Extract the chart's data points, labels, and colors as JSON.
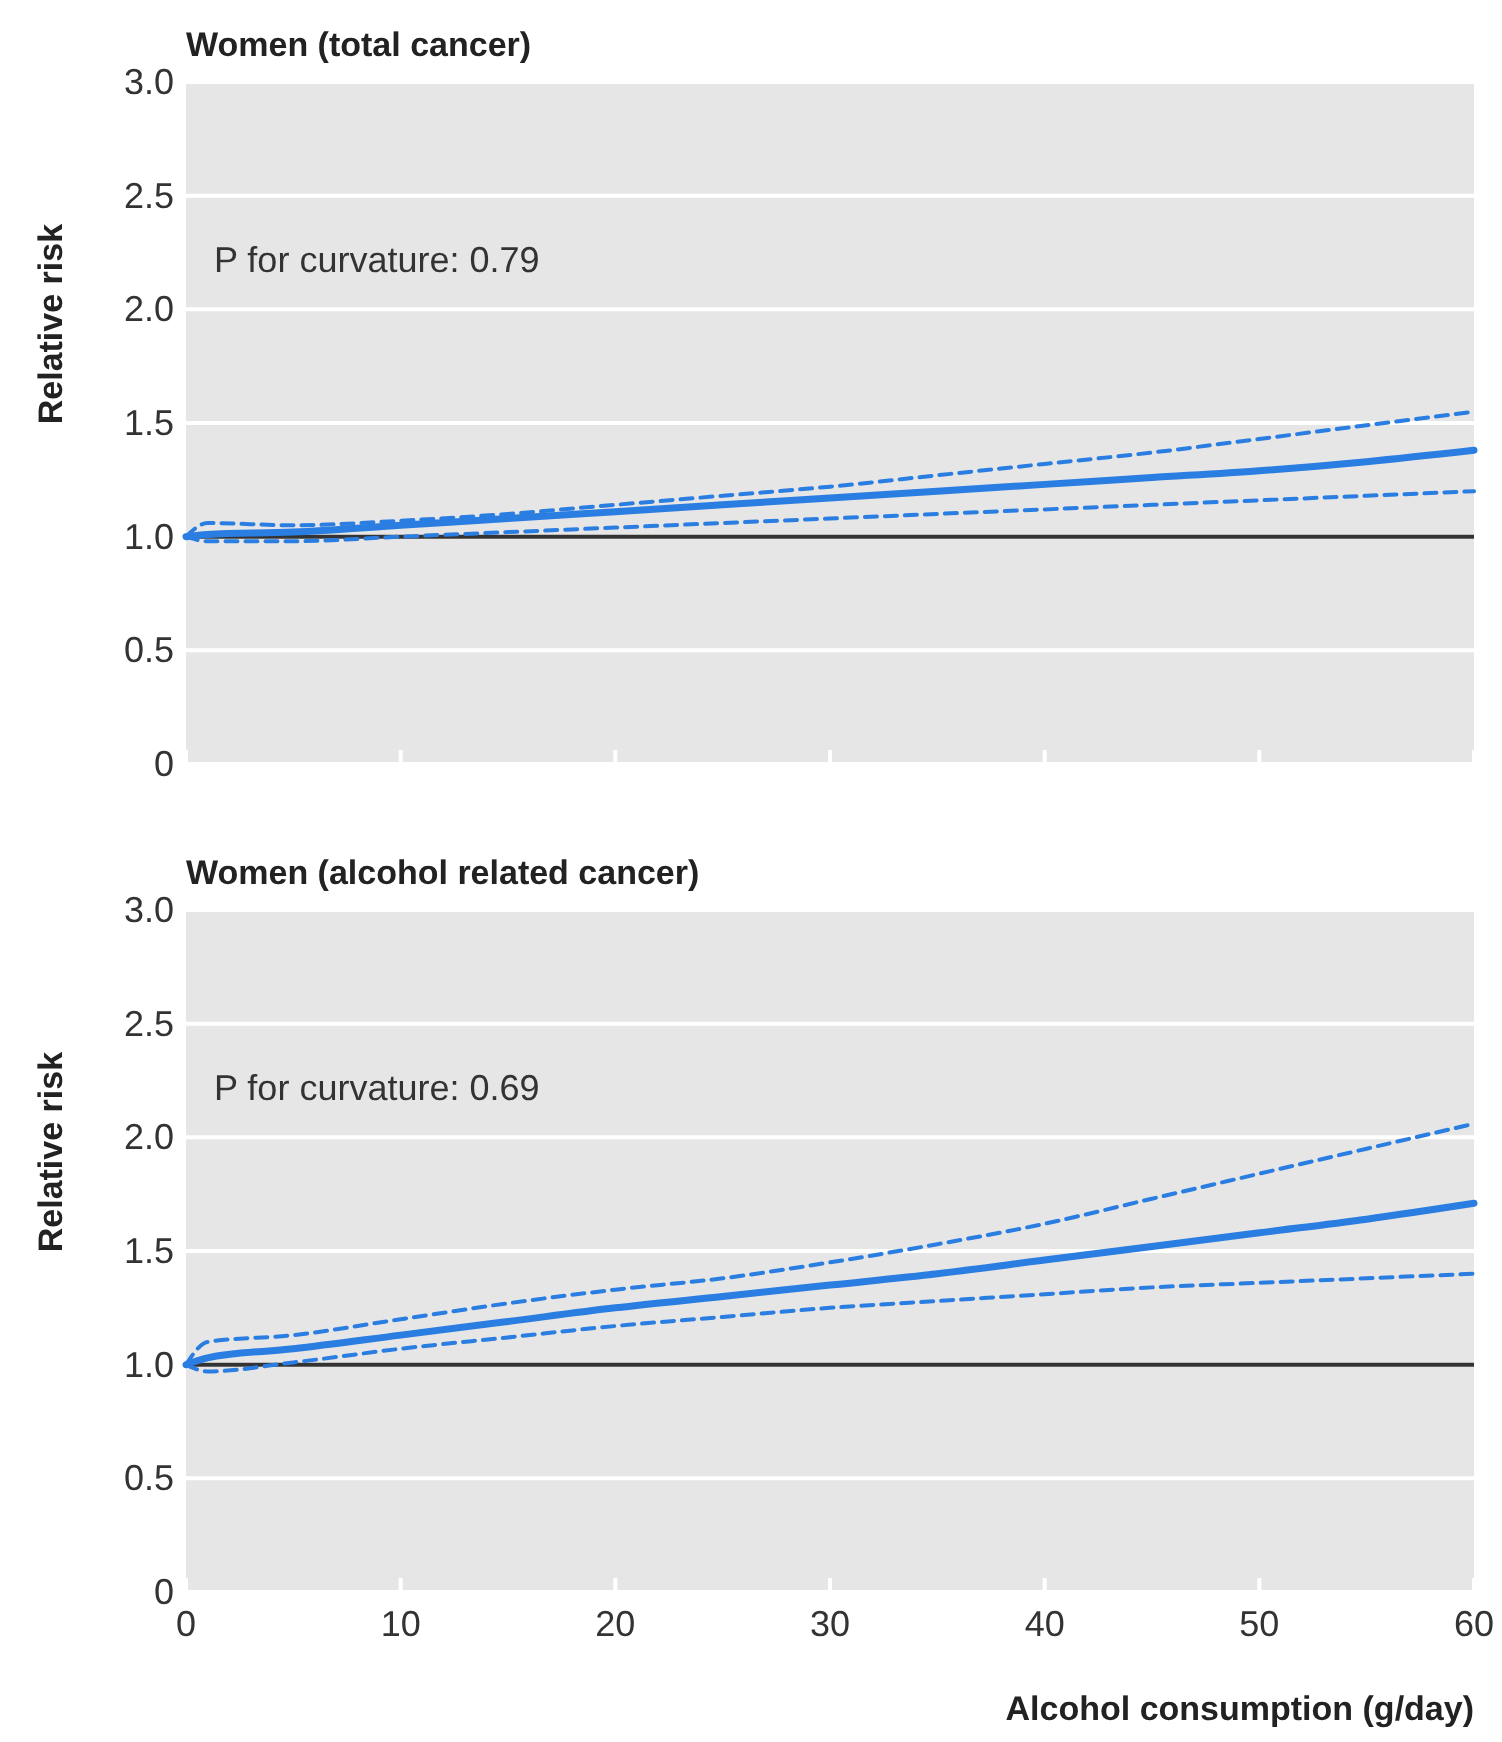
{
  "chart_data": [
    {
      "type": "line",
      "title": "Women (total cancer)",
      "ylabel": "Relative risk",
      "annotations": [
        "P for curvature: 0.79"
      ],
      "xlim": [
        0,
        60
      ],
      "xticks": [
        {
          "value": 0,
          "label": null
        },
        {
          "value": 10,
          "label": null
        },
        {
          "value": 20,
          "label": null
        },
        {
          "value": 30,
          "label": null
        },
        {
          "value": 40,
          "label": null
        },
        {
          "value": 50,
          "label": null
        },
        {
          "value": 60,
          "label": null
        }
      ],
      "ylim": [
        0,
        3
      ],
      "yticks": [
        0,
        {
          "value": 0.5,
          "label": "0.5"
        },
        {
          "value": 1,
          "label": "1.0"
        },
        {
          "value": 1.5,
          "label": "1.5"
        },
        {
          "value": 2,
          "label": "2.0"
        },
        {
          "value": 2.5,
          "label": "2.5"
        },
        {
          "value": 3,
          "label": "3.0"
        }
      ],
      "tick_labels": "y",
      "grid": "y",
      "ref_lines": [
        {
          "axis": "y",
          "value": 1,
          "color": "#333333"
        }
      ],
      "series": [
        {
          "color": "#2a7de1",
          "line_style": "solid",
          "x": [
            0,
            1,
            5,
            10,
            15,
            20,
            25,
            30,
            35,
            40,
            45,
            50,
            55,
            60
          ],
          "values": [
            1.0,
            1.01,
            1.02,
            1.05,
            1.08,
            1.11,
            1.14,
            1.17,
            1.2,
            1.23,
            1.26,
            1.29,
            1.33,
            1.38
          ]
        },
        {
          "color": "#2a7de1",
          "line_style": "dashed",
          "x": [
            0,
            1,
            5,
            10,
            15,
            20,
            25,
            30,
            35,
            40,
            45,
            50,
            55,
            60
          ],
          "values": [
            1.0,
            0.98,
            0.98,
            1.0,
            1.02,
            1.04,
            1.06,
            1.08,
            1.1,
            1.12,
            1.14,
            1.16,
            1.18,
            1.2
          ]
        },
        {
          "color": "#2a7de1",
          "line_style": "dashed",
          "x": [
            0,
            1,
            5,
            10,
            15,
            20,
            25,
            30,
            35,
            40,
            45,
            50,
            55,
            60
          ],
          "values": [
            1.0,
            1.06,
            1.05,
            1.07,
            1.1,
            1.14,
            1.18,
            1.22,
            1.27,
            1.32,
            1.37,
            1.43,
            1.49,
            1.55
          ]
        }
      ]
    },
    {
      "type": "line",
      "title": "Women (alcohol related cancer)",
      "ylabel": "Relative risk",
      "xlabel": "Alcohol consumption (g/day)",
      "annotations": [
        "P for curvature: 0.69"
      ],
      "xlim": [
        0,
        60
      ],
      "xticks": [
        0,
        10,
        20,
        30,
        40,
        50,
        60
      ],
      "ylim": [
        0,
        3
      ],
      "yticks": [
        0,
        {
          "value": 0.5,
          "label": "0.5"
        },
        {
          "value": 1,
          "label": "1.0"
        },
        {
          "value": 1.5,
          "label": "1.5"
        },
        {
          "value": 2,
          "label": "2.0"
        },
        {
          "value": 2.5,
          "label": "2.5"
        },
        {
          "value": 3,
          "label": "3.0"
        }
      ],
      "grid": "y",
      "ref_lines": [
        {
          "axis": "y",
          "value": 1,
          "color": "#333333"
        }
      ],
      "series": [
        {
          "color": "#2a7de1",
          "line_style": "solid",
          "x": [
            0,
            1,
            5,
            10,
            15,
            20,
            25,
            30,
            35,
            40,
            45,
            50,
            55,
            60
          ],
          "values": [
            1.0,
            1.03,
            1.07,
            1.13,
            1.19,
            1.25,
            1.3,
            1.35,
            1.4,
            1.46,
            1.52,
            1.58,
            1.64,
            1.71
          ]
        },
        {
          "color": "#2a7de1",
          "line_style": "dashed",
          "x": [
            0,
            1,
            5,
            10,
            15,
            20,
            25,
            30,
            35,
            40,
            45,
            50,
            55,
            60
          ],
          "values": [
            1.0,
            0.97,
            1.01,
            1.07,
            1.12,
            1.17,
            1.21,
            1.25,
            1.28,
            1.31,
            1.34,
            1.36,
            1.38,
            1.4
          ]
        },
        {
          "color": "#2a7de1",
          "line_style": "dashed",
          "x": [
            0,
            1,
            5,
            10,
            15,
            20,
            25,
            30,
            35,
            40,
            45,
            50,
            55,
            60
          ],
          "values": [
            1.0,
            1.1,
            1.13,
            1.2,
            1.27,
            1.33,
            1.38,
            1.45,
            1.53,
            1.62,
            1.73,
            1.84,
            1.95,
            2.06
          ]
        }
      ]
    }
  ]
}
